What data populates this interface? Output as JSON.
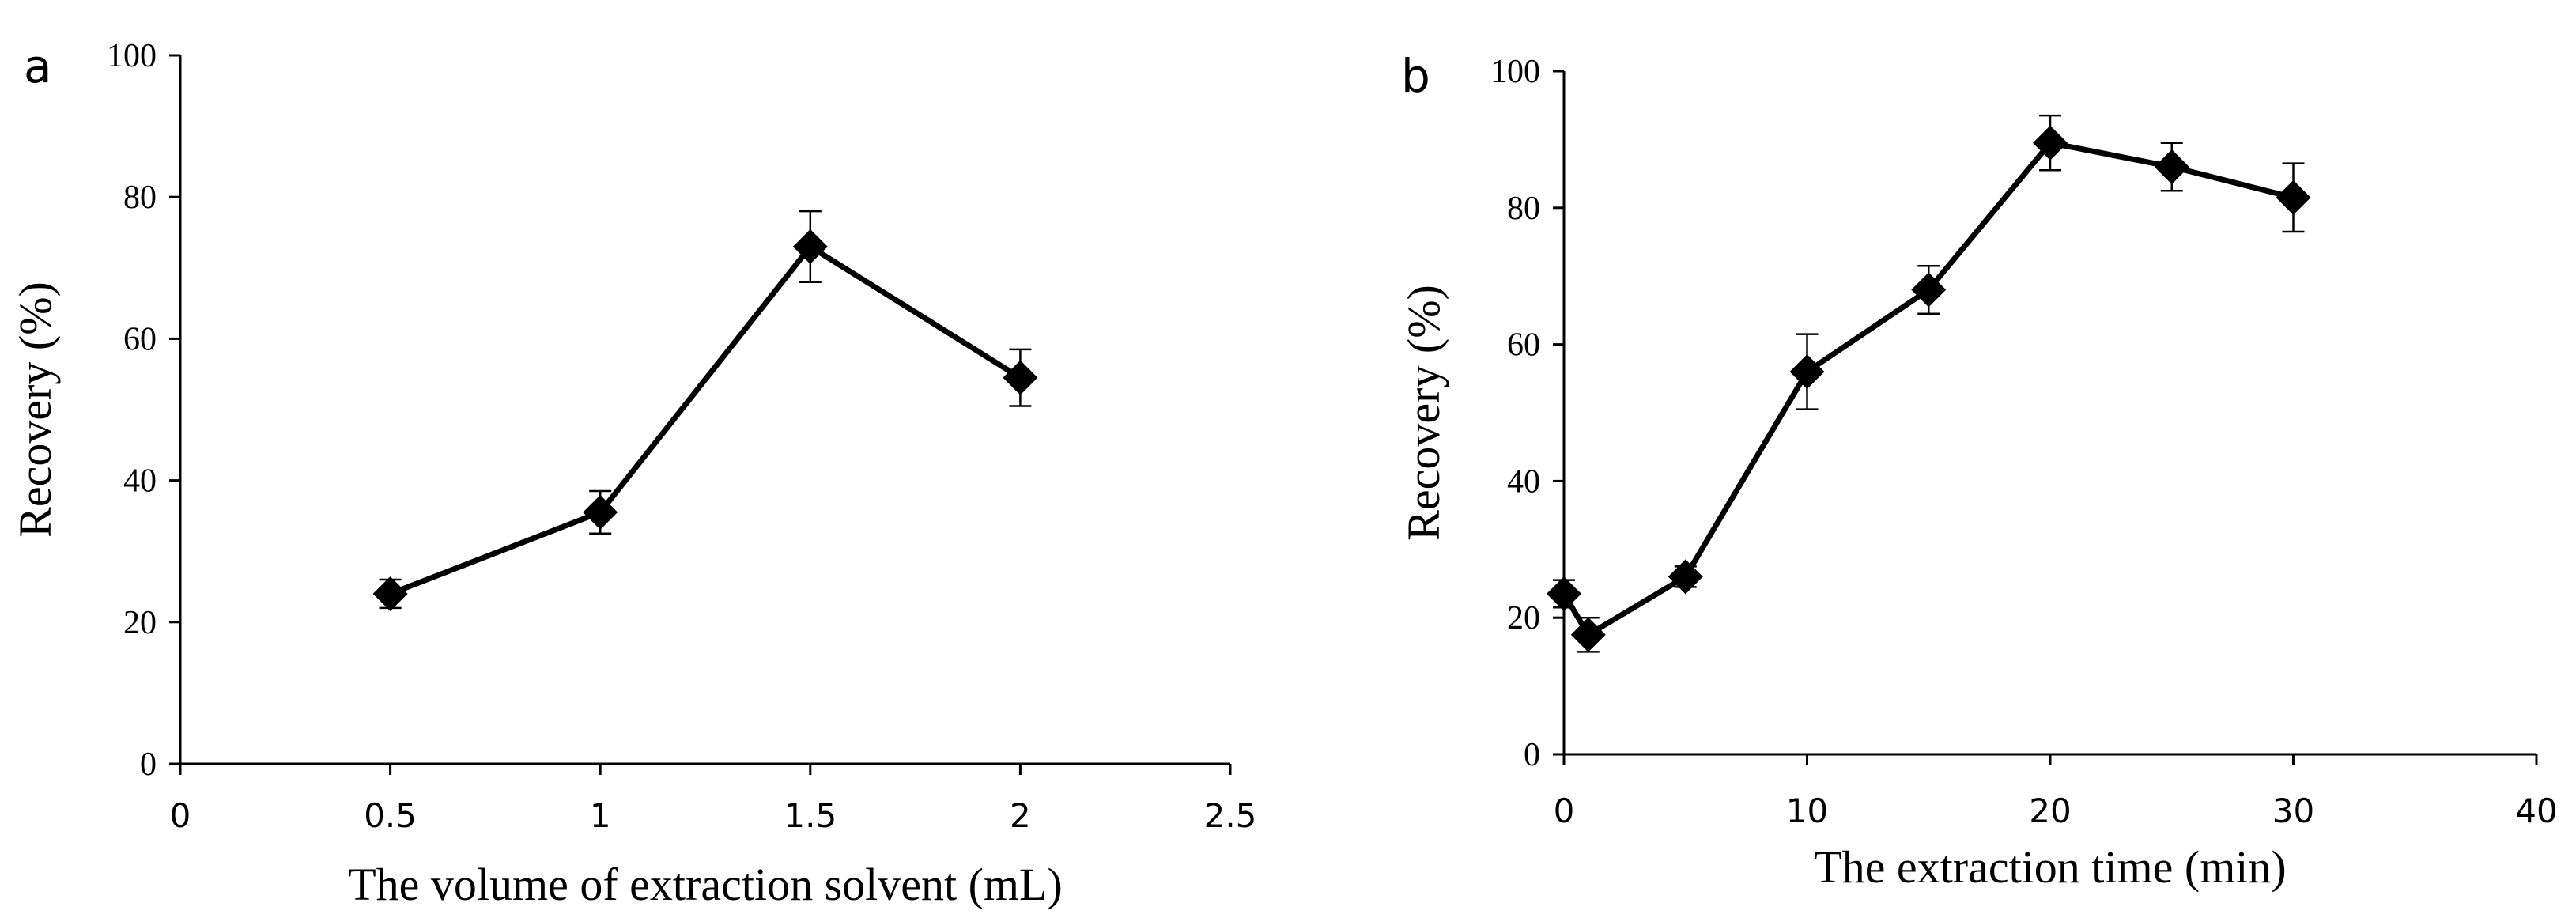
{
  "chart_data": [
    {
      "type": "line",
      "panel_label": "a",
      "title": "",
      "xlabel": "The volume of extraction solvent (mL)",
      "ylabel": "Recovery (%)",
      "xlim": [
        0,
        2.5
      ],
      "ylim": [
        0,
        100
      ],
      "x_ticks": [
        0,
        0.5,
        1,
        1.5,
        2,
        2.5
      ],
      "x_tick_labels": [
        "0",
        "0.5",
        "1",
        "1.5",
        "2",
        "2.5"
      ],
      "y_ticks": [
        0,
        20,
        40,
        60,
        80,
        100
      ],
      "y_tick_labels": [
        "0",
        "20",
        "40",
        "60",
        "80",
        "100"
      ],
      "grid": false,
      "series": [
        {
          "name": "Recovery",
          "marker": "diamond",
          "x": [
            0.5,
            1,
            1.5,
            2
          ],
          "values": [
            24,
            35.5,
            73,
            54.5
          ],
          "error": [
            2,
            3,
            5,
            4
          ]
        }
      ]
    },
    {
      "type": "line",
      "panel_label": "b",
      "title": "",
      "xlabel": "The extraction time (min)",
      "ylabel": "Recovery (%)",
      "xlim": [
        0,
        40
      ],
      "ylim": [
        0,
        100
      ],
      "x_ticks": [
        0,
        10,
        20,
        30,
        40
      ],
      "x_tick_labels": [
        "0",
        "10",
        "20",
        "30",
        "40"
      ],
      "y_ticks": [
        0,
        20,
        40,
        60,
        80,
        100
      ],
      "y_tick_labels": [
        "0",
        "20",
        "40",
        "60",
        "80",
        "100"
      ],
      "grid": false,
      "series": [
        {
          "name": "Recovery",
          "marker": "diamond",
          "x": [
            0,
            1,
            5,
            10,
            15,
            20,
            25,
            30
          ],
          "values": [
            23.5,
            17.5,
            26,
            56,
            68,
            89.5,
            86,
            81.5
          ],
          "error": [
            2,
            2.5,
            1.5,
            5.5,
            3.5,
            4,
            3.5,
            5
          ]
        }
      ]
    }
  ]
}
